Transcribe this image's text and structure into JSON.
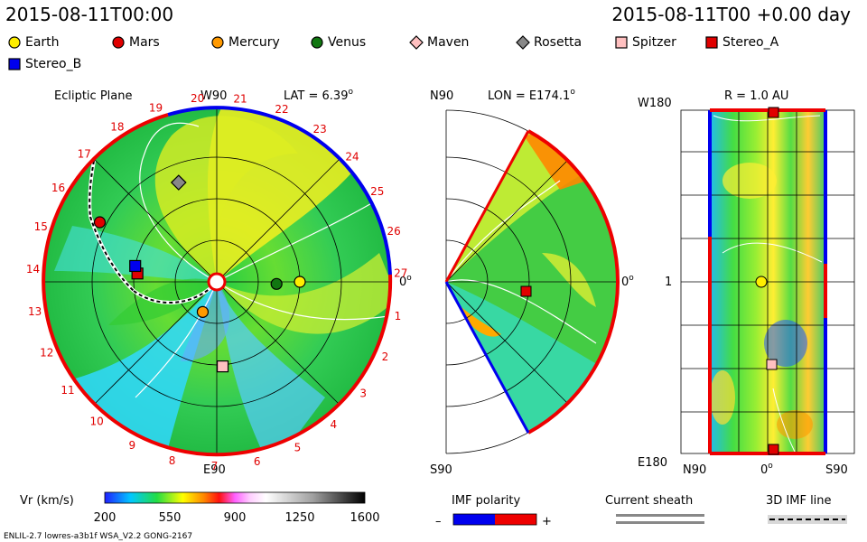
{
  "header": {
    "datetime": "2015-08-11T00:00",
    "right_label": "2015-08-11T00 +0.00 day"
  },
  "legend": [
    {
      "name": "Earth",
      "shape": "circle",
      "color": "#ffee00"
    },
    {
      "name": "Mars",
      "shape": "circle",
      "color": "#e00000"
    },
    {
      "name": "Mercury",
      "shape": "circle",
      "color": "#ff9900"
    },
    {
      "name": "Venus",
      "shape": "circle",
      "color": "#117711"
    },
    {
      "name": "Maven",
      "shape": "diamond",
      "color": "#ffc0c0"
    },
    {
      "name": "Rosetta",
      "shape": "diamond",
      "color": "#888888"
    },
    {
      "name": "Spitzer",
      "shape": "square",
      "color": "#ffc0c0"
    },
    {
      "name": "Stereo_A",
      "shape": "square",
      "color": "#e00000"
    },
    {
      "name": "Stereo_B",
      "shape": "square",
      "color": "#0000ee"
    }
  ],
  "panels": {
    "ecliptic": {
      "title": "Ecliptic Plane",
      "top_label": "W90",
      "bottom_label": "E90",
      "right_label": "0",
      "right_label_sup": "o",
      "lat_label": "LAT = 6.39",
      "lat_sup": "o",
      "carrington_ticks": [
        "20",
        "21",
        "22",
        "23",
        "24",
        "25",
        "26",
        "27",
        "1",
        "2",
        "3",
        "4",
        "5",
        "6",
        "7",
        "8",
        "9",
        "10",
        "11",
        "12",
        "13",
        "14",
        "15",
        "16",
        "17",
        "18",
        "19"
      ]
    },
    "meridional": {
      "top_label": "N90",
      "bottom_label": "S90",
      "right_label": "0",
      "right_label_sup": "o",
      "lon_label": "LON = E174.1",
      "lon_sup": "o"
    },
    "radial": {
      "title": "R = 1.0 AU",
      "top_left_label": "W180",
      "bottom_left_label": "E180",
      "mid_left_label": "1",
      "bottom_labels": [
        "N90",
        "0",
        "S90"
      ],
      "bottom_mid_sup": "o"
    }
  },
  "colorbar": {
    "label": "Vr (km/s)",
    "ticks": [
      "200",
      "550",
      "900",
      "1250",
      "1600"
    ],
    "min": 200,
    "max": 1600
  },
  "imf_polarity": {
    "label": "IMF polarity",
    "minus": "–",
    "plus": "+",
    "neg_color": "#0000ee",
    "pos_color": "#ee0000"
  },
  "current_sheath": {
    "label": "Current sheath"
  },
  "imf_line": {
    "label": "3D IMF line"
  },
  "footer": {
    "left": "ENLIL-2.7 lowres-a3b1f WSA_V2.2 GONG-2167"
  },
  "chart_data": {
    "type": "heatmap",
    "variable": "Vr (km/s)",
    "vmin": 200,
    "vmax": 1600,
    "objects_ecliptic": [
      {
        "name": "Earth",
        "r_au": 1.0,
        "angle_deg": 0
      },
      {
        "name": "Venus",
        "r_au": 0.72,
        "angle_deg": -2
      },
      {
        "name": "Mercury",
        "r_au": 0.4,
        "angle_deg": -115
      },
      {
        "name": "Mars",
        "r_au": 1.58,
        "angle_deg": 153
      },
      {
        "name": "Rosetta",
        "r_au": 1.28,
        "angle_deg": 111
      },
      {
        "name": "Spitzer",
        "r_au": 1.02,
        "angle_deg": -86
      },
      {
        "name": "Stereo_A",
        "r_au": 0.96,
        "angle_deg": 174
      },
      {
        "name": "Stereo_B",
        "r_au": 1.0,
        "angle_deg": 169
      }
    ]
  }
}
